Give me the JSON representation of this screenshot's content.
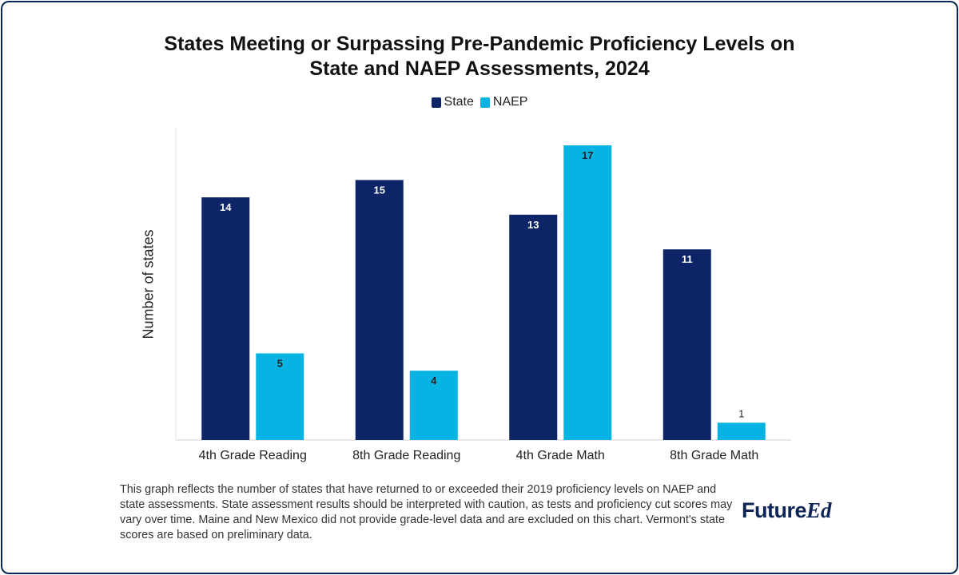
{
  "chart_data": {
    "type": "bar",
    "title_lines": [
      "States Meeting or Surpassing Pre-Pandemic Proficiency Levels on",
      "State and NAEP Assessments, 2024"
    ],
    "categories": [
      "4th Grade Reading",
      "8th Grade Reading",
      "4th Grade Math",
      "8th Grade Math"
    ],
    "series": [
      {
        "name": "State",
        "color": "#0d2466",
        "label_color": "#ffffff",
        "values": [
          14,
          15,
          13,
          11
        ]
      },
      {
        "name": "NAEP",
        "color": "#06b3e2",
        "label_color": "#222222",
        "values": [
          5,
          4,
          17,
          1
        ]
      }
    ],
    "xlabel": "",
    "ylabel": "Number of states",
    "ylim": [
      0,
      18
    ],
    "grid": false,
    "legend_position": "top-center"
  },
  "footnote": "This graph reflects the number of states that have returned to or exceeded their 2019 proficiency levels on NAEP and state assessments. State assessment results should be interpreted with caution, as tests and proficiency cut scores may vary over time. Maine and New Mexico did not provide grade-level data and are excluded on this chart. Vermont's state scores are based on preliminary data.",
  "logo": {
    "part1": "Future",
    "part2": "Ed",
    "color": "#0d2456"
  }
}
